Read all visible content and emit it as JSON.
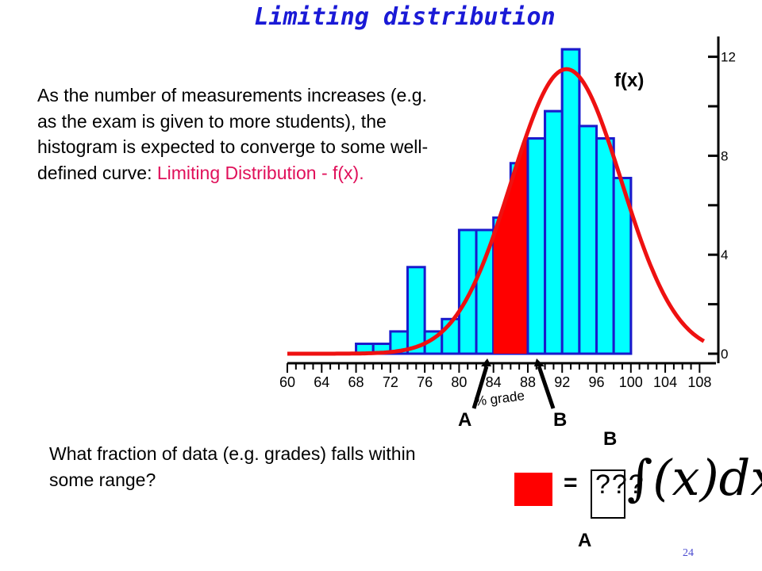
{
  "title": "Limiting distribution",
  "paragraph": {
    "text": "As the number of measurements increases (e.g. as the exam is given to more students), the histogram is expected to converge to some well-defined curve:",
    "highlight": "Limiting Distribution - f(x)."
  },
  "question": "What fraction of data (e.g. grades) falls within some range?",
  "labels": {
    "fx": "f(x)",
    "marker_a": "A",
    "marker_b": "B",
    "upper_limit": "B",
    "lower_limit": "A",
    "equals": "=",
    "unknown": "???",
    "integral": "∫(x)dx",
    "page_number": "24"
  },
  "colors": {
    "title": "#1a1ad6",
    "bar_fill": "#00ffff",
    "bar_stroke": "#1a1acc",
    "curve": "#ee1111",
    "shaded_area": "#ff0000",
    "highlight_text": "#e0105a"
  },
  "chart_data": {
    "type": "bar",
    "xlabel": "% grade",
    "ylabel": "",
    "xlim": [
      60,
      110
    ],
    "ylim": [
      0,
      12.5
    ],
    "x_ticks": [
      60,
      64,
      68,
      72,
      76,
      80,
      84,
      88,
      92,
      96,
      100,
      104,
      108
    ],
    "y_ticks": [
      0,
      4,
      8,
      12
    ],
    "bin_width": 2,
    "bins": [
      {
        "start": 68,
        "value": 0.4
      },
      {
        "start": 70,
        "value": 0.4
      },
      {
        "start": 72,
        "value": 0.9
      },
      {
        "start": 74,
        "value": 3.5
      },
      {
        "start": 76,
        "value": 0.9
      },
      {
        "start": 78,
        "value": 1.4
      },
      {
        "start": 80,
        "value": 5.0
      },
      {
        "start": 82,
        "value": 5.0
      },
      {
        "start": 84,
        "value": 5.5
      },
      {
        "start": 86,
        "value": 7.7
      },
      {
        "start": 88,
        "value": 8.7
      },
      {
        "start": 90,
        "value": 9.8
      },
      {
        "start": 92,
        "value": 12.3
      },
      {
        "start": 94,
        "value": 9.2
      },
      {
        "start": 96,
        "value": 8.7
      },
      {
        "start": 98,
        "value": 7.1
      }
    ],
    "curve": {
      "name": "f(x)",
      "mean": 92.5,
      "sd": 6.4,
      "peak": 11.5
    },
    "shaded_range": [
      84,
      88
    ],
    "grid": false
  }
}
